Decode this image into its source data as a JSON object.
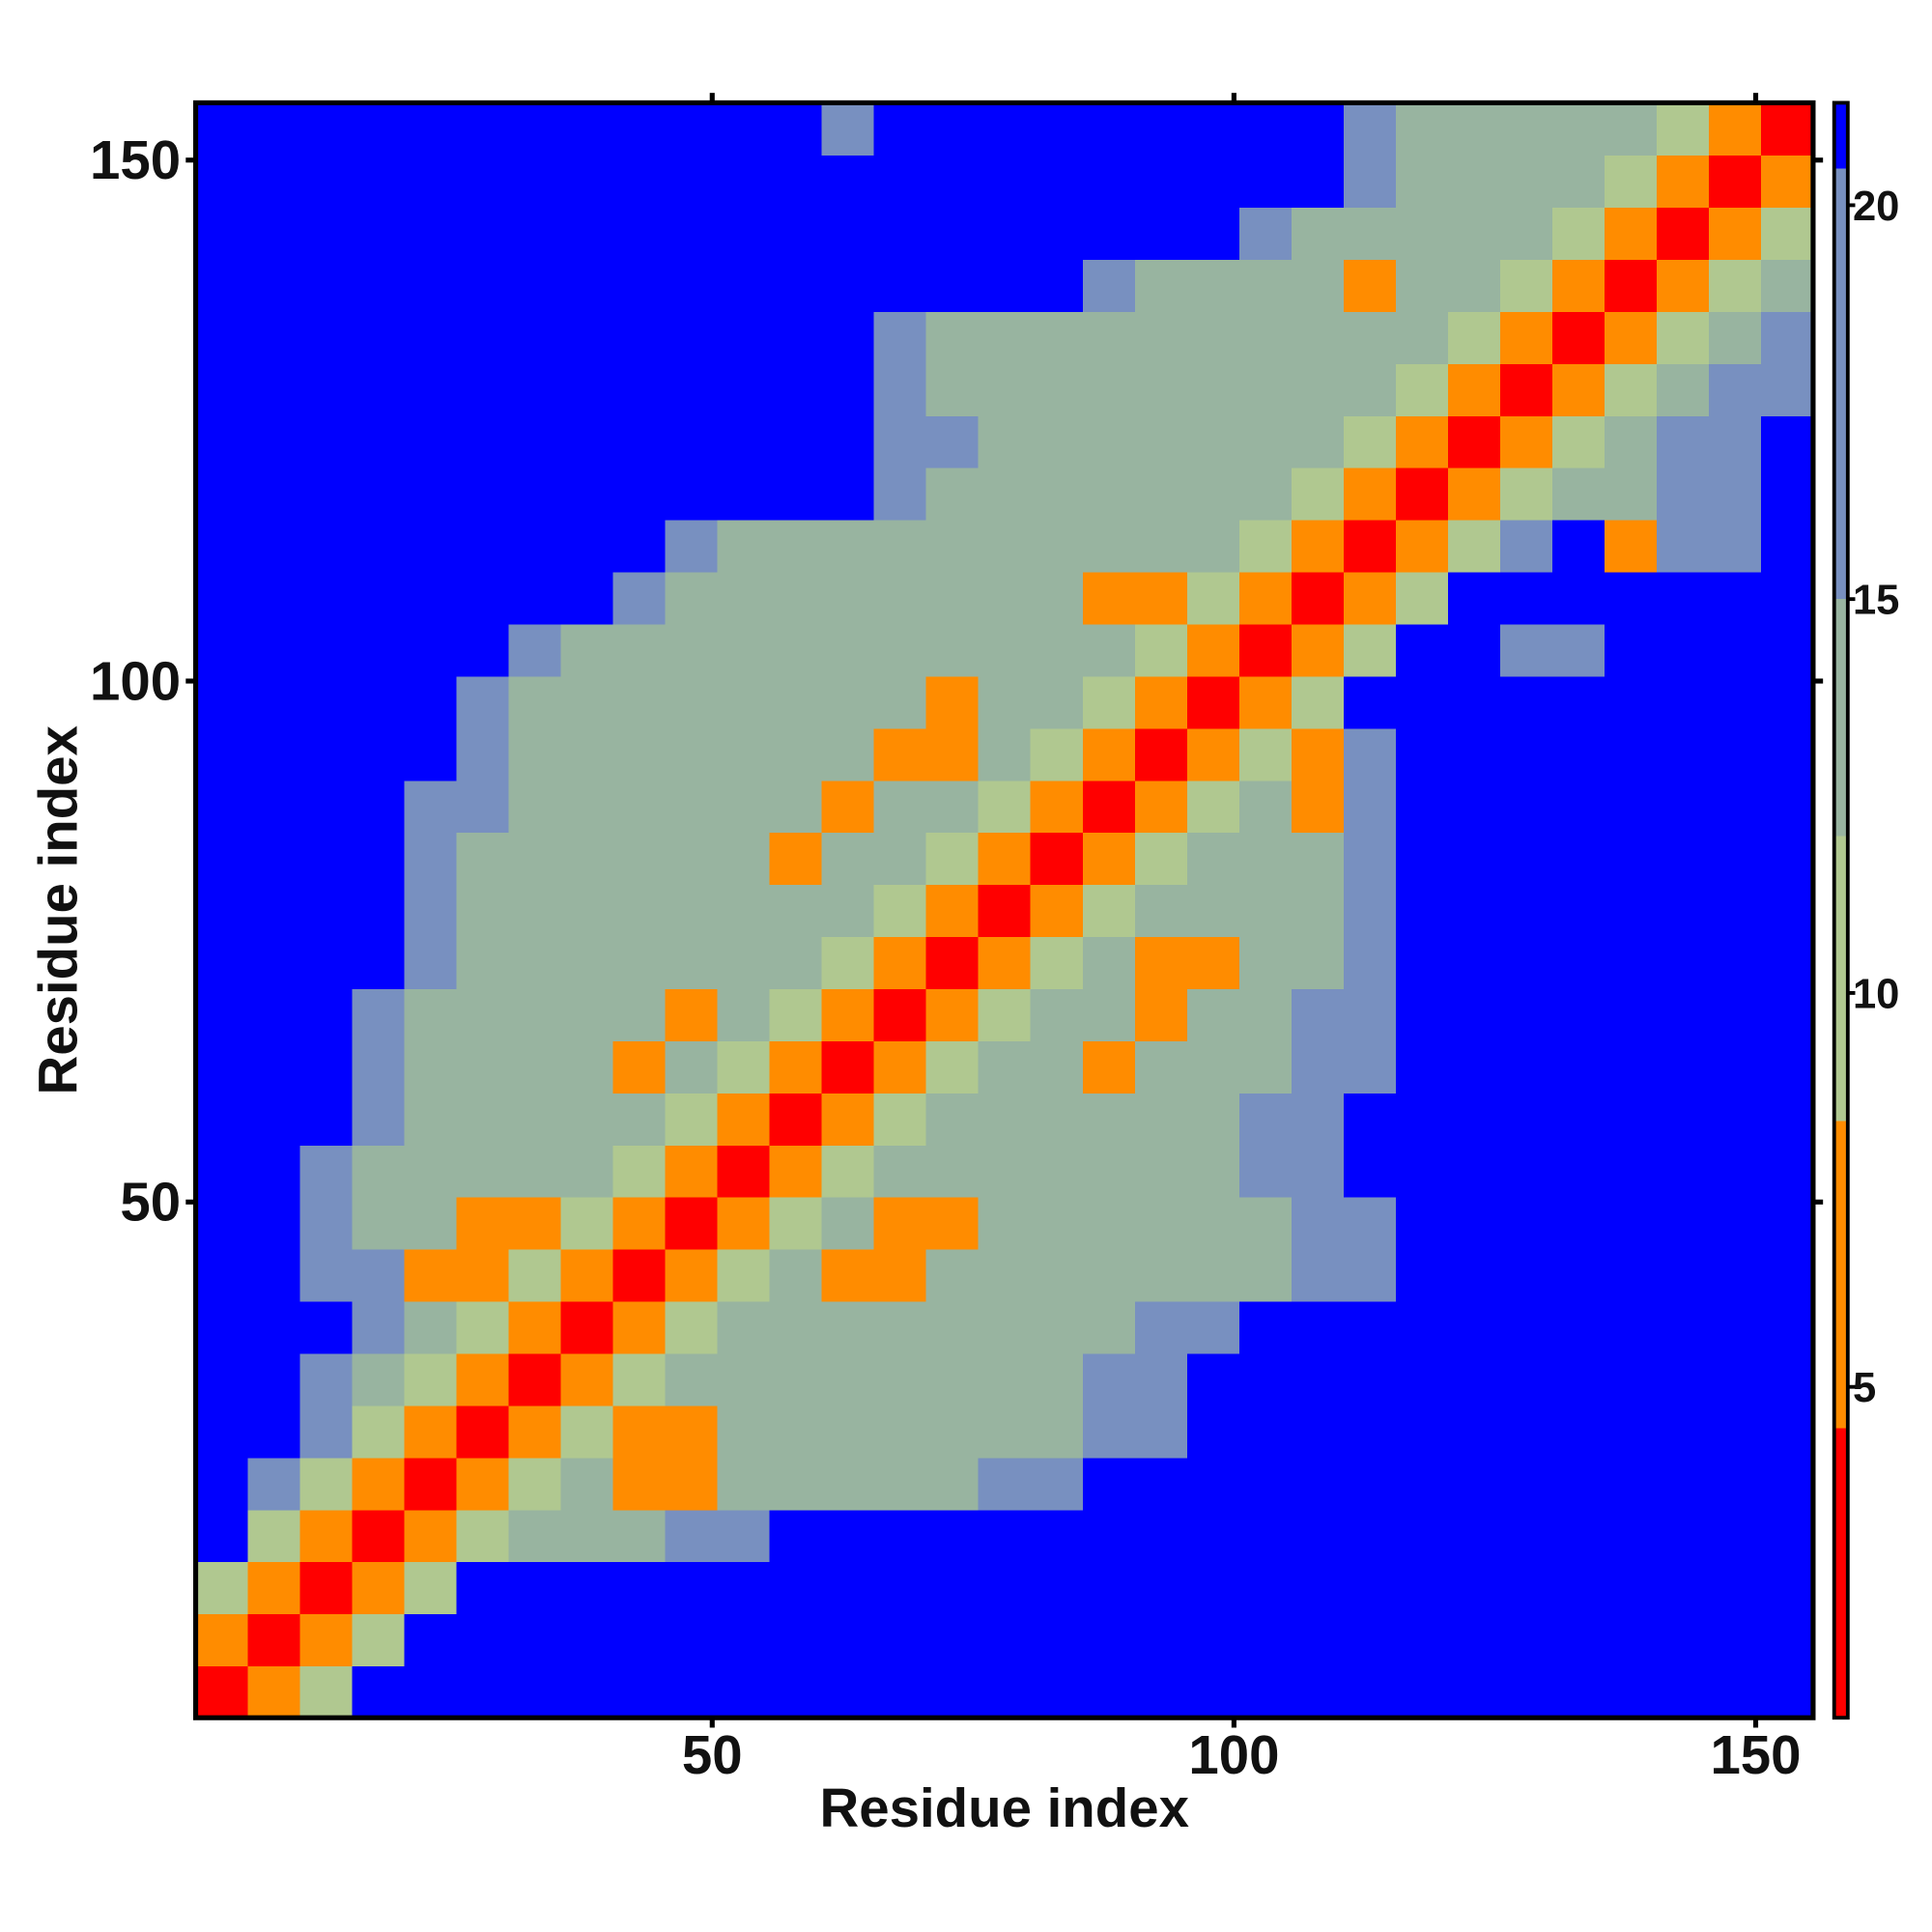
{
  "chart_data": {
    "type": "heatmap",
    "x_label": "Residue index",
    "y_label": "Residue index",
    "x": [
      3,
      8,
      13,
      18,
      23,
      28,
      33,
      38,
      43,
      48,
      53,
      58,
      63,
      68,
      73,
      78,
      83,
      88,
      93,
      98,
      103,
      108,
      113,
      118,
      123,
      128,
      133,
      138,
      143,
      148,
      153
    ],
    "y": [
      3,
      8,
      13,
      18,
      23,
      28,
      33,
      38,
      43,
      48,
      53,
      58,
      63,
      68,
      73,
      78,
      83,
      88,
      93,
      98,
      103,
      108,
      113,
      118,
      123,
      128,
      133,
      138,
      143,
      148,
      153
    ],
    "z": [
      [
        2,
        7,
        11,
        21,
        21,
        21,
        21,
        21,
        21,
        21,
        21,
        21,
        21,
        21,
        21,
        21,
        21,
        21,
        21,
        21,
        21,
        21,
        21,
        21,
        21,
        21,
        21,
        21,
        21,
        21,
        21
      ],
      [
        7,
        2,
        7,
        11,
        21,
        21,
        21,
        21,
        21,
        21,
        21,
        21,
        21,
        21,
        21,
        21,
        21,
        21,
        21,
        21,
        21,
        21,
        21,
        21,
        21,
        21,
        21,
        21,
        21,
        21,
        21
      ],
      [
        11,
        7,
        2,
        7,
        11,
        21,
        21,
        21,
        21,
        21,
        21,
        21,
        21,
        21,
        21,
        21,
        21,
        21,
        21,
        21,
        21,
        21,
        21,
        21,
        21,
        21,
        21,
        21,
        21,
        21,
        21
      ],
      [
        21,
        11,
        7,
        2,
        7,
        11,
        13,
        13,
        13,
        17,
        17,
        21,
        21,
        21,
        21,
        21,
        21,
        21,
        21,
        21,
        21,
        21,
        21,
        21,
        21,
        21,
        21,
        21,
        21,
        21,
        21
      ],
      [
        21,
        17,
        11,
        7,
        2,
        7,
        11,
        13,
        6,
        6,
        13,
        13,
        14,
        14,
        13,
        17,
        17,
        21,
        21,
        21,
        21,
        21,
        21,
        21,
        21,
        21,
        21,
        21,
        21,
        21,
        21
      ],
      [
        21,
        21,
        17,
        11,
        7,
        2,
        7,
        11,
        6,
        6,
        13,
        14,
        13,
        13,
        14,
        13,
        14,
        17,
        17,
        21,
        21,
        21,
        21,
        21,
        21,
        21,
        21,
        21,
        21,
        21,
        21
      ],
      [
        21,
        21,
        17,
        13,
        11,
        7,
        2,
        7,
        11,
        13,
        14,
        13,
        13,
        14,
        13,
        13,
        14,
        17,
        17,
        21,
        21,
        21,
        21,
        21,
        21,
        21,
        21,
        21,
        21,
        21,
        21
      ],
      [
        21,
        21,
        21,
        17,
        13,
        11,
        7,
        2,
        7,
        11,
        13,
        14,
        13,
        13,
        14,
        13,
        14,
        14,
        17,
        17,
        21,
        21,
        21,
        21,
        21,
        21,
        21,
        21,
        21,
        21,
        21
      ],
      [
        21,
        21,
        17,
        17,
        6,
        6,
        11,
        7,
        2,
        7,
        11,
        13,
        6,
        6,
        13,
        14,
        13,
        13,
        14,
        14,
        13,
        17,
        17,
        21,
        21,
        21,
        21,
        21,
        21,
        21,
        21
      ],
      [
        21,
        21,
        17,
        14,
        13,
        6,
        6,
        11,
        7,
        2,
        7,
        11,
        13,
        6,
        6,
        13,
        14,
        13,
        13,
        14,
        14,
        17,
        17,
        21,
        21,
        21,
        21,
        21,
        21,
        21,
        21
      ],
      [
        21,
        21,
        17,
        14,
        13,
        13,
        14,
        13,
        11,
        7,
        2,
        7,
        11,
        13,
        14,
        13,
        13,
        14,
        13,
        14,
        17,
        17,
        21,
        21,
        21,
        21,
        21,
        21,
        21,
        21,
        21
      ],
      [
        21,
        21,
        21,
        17,
        14,
        13,
        13,
        14,
        13,
        11,
        7,
        2,
        7,
        11,
        13,
        14,
        13,
        13,
        14,
        13,
        17,
        17,
        21,
        21,
        21,
        21,
        21,
        21,
        21,
        21,
        21
      ],
      [
        21,
        21,
        21,
        17,
        14,
        13,
        13,
        14,
        6,
        13,
        11,
        7,
        2,
        7,
        11,
        13,
        13,
        6,
        13,
        14,
        14,
        17,
        17,
        21,
        21,
        21,
        21,
        21,
        21,
        21,
        21
      ],
      [
        21,
        21,
        21,
        17,
        13,
        14,
        13,
        13,
        13,
        6,
        13,
        11,
        7,
        2,
        7,
        11,
        13,
        13,
        6,
        13,
        14,
        17,
        17,
        21,
        21,
        21,
        21,
        21,
        21,
        21,
        21
      ],
      [
        21,
        21,
        21,
        21,
        17,
        14,
        13,
        13,
        14,
        13,
        13,
        14,
        11,
        7,
        2,
        7,
        11,
        13,
        6,
        6,
        13,
        14,
        17,
        21,
        21,
        21,
        21,
        21,
        21,
        21,
        21
      ],
      [
        21,
        21,
        21,
        21,
        17,
        14,
        13,
        14,
        13,
        13,
        14,
        13,
        13,
        11,
        7,
        2,
        7,
        11,
        13,
        13,
        14,
        14,
        17,
        21,
        21,
        21,
        21,
        21,
        21,
        21,
        21
      ],
      [
        21,
        21,
        21,
        21,
        17,
        14,
        13,
        13,
        14,
        13,
        13,
        6,
        13,
        13,
        11,
        7,
        2,
        7,
        11,
        13,
        13,
        14,
        17,
        21,
        21,
        21,
        21,
        21,
        21,
        21,
        21
      ],
      [
        21,
        21,
        21,
        21,
        17,
        17,
        13,
        14,
        13,
        13,
        14,
        13,
        6,
        13,
        13,
        11,
        7,
        2,
        7,
        11,
        13,
        6,
        17,
        21,
        21,
        21,
        21,
        21,
        21,
        21,
        21
      ],
      [
        21,
        21,
        21,
        21,
        21,
        17,
        14,
        13,
        13,
        14,
        13,
        13,
        13,
        6,
        6,
        13,
        11,
        7,
        2,
        7,
        11,
        6,
        17,
        21,
        21,
        21,
        21,
        21,
        21,
        21,
        21
      ],
      [
        21,
        21,
        21,
        21,
        21,
        17,
        14,
        13,
        14,
        13,
        13,
        14,
        13,
        13,
        6,
        13,
        13,
        11,
        7,
        2,
        7,
        11,
        21,
        21,
        21,
        21,
        21,
        21,
        21,
        21,
        21
      ],
      [
        21,
        21,
        21,
        21,
        21,
        21,
        17,
        14,
        13,
        13,
        14,
        13,
        13,
        14,
        13,
        13,
        13,
        13,
        11,
        7,
        2,
        7,
        11,
        21,
        21,
        17,
        17,
        21,
        21,
        21,
        21
      ],
      [
        21,
        21,
        21,
        21,
        21,
        21,
        21,
        21,
        17,
        14,
        13,
        13,
        14,
        13,
        13,
        14,
        13,
        6,
        6,
        11,
        7,
        2,
        7,
        11,
        21,
        21,
        21,
        21,
        21,
        21,
        21
      ],
      [
        21,
        21,
        21,
        21,
        21,
        21,
        21,
        21,
        21,
        17,
        14,
        13,
        14,
        13,
        13,
        14,
        13,
        13,
        13,
        14,
        11,
        7,
        2,
        7,
        11,
        17,
        21,
        6,
        17,
        17,
        21
      ],
      [
        21,
        21,
        21,
        21,
        21,
        21,
        21,
        21,
        21,
        21,
        21,
        21,
        21,
        17,
        14,
        13,
        14,
        13,
        14,
        13,
        13,
        11,
        7,
        2,
        7,
        11,
        14,
        14,
        17,
        17,
        21
      ],
      [
        21,
        21,
        21,
        21,
        21,
        21,
        21,
        21,
        21,
        21,
        21,
        21,
        21,
        17,
        17,
        14,
        13,
        14,
        13,
        14,
        13,
        13,
        11,
        7,
        2,
        7,
        11,
        14,
        17,
        17,
        21
      ],
      [
        21,
        21,
        21,
        21,
        21,
        21,
        21,
        21,
        21,
        21,
        21,
        21,
        21,
        17,
        14,
        13,
        14,
        14,
        13,
        14,
        14,
        13,
        13,
        11,
        7,
        2,
        7,
        11,
        14,
        17,
        17
      ],
      [
        21,
        21,
        21,
        21,
        21,
        21,
        21,
        21,
        21,
        21,
        21,
        21,
        21,
        17,
        14,
        14,
        13,
        14,
        14,
        13,
        14,
        13,
        14,
        13,
        11,
        7,
        2,
        7,
        11,
        14,
        17
      ],
      [
        21,
        21,
        21,
        21,
        21,
        21,
        21,
        21,
        21,
        21,
        21,
        21,
        21,
        21,
        21,
        21,
        21,
        17,
        14,
        13,
        14,
        13,
        6,
        13,
        14,
        11,
        7,
        2,
        7,
        11,
        14
      ],
      [
        21,
        21,
        21,
        21,
        21,
        21,
        21,
        21,
        21,
        21,
        21,
        21,
        21,
        21,
        21,
        21,
        21,
        21,
        21,
        21,
        17,
        14,
        13,
        14,
        13,
        14,
        11,
        7,
        2,
        7,
        11
      ],
      [
        21,
        21,
        21,
        21,
        21,
        21,
        21,
        21,
        21,
        21,
        21,
        21,
        21,
        21,
        21,
        21,
        21,
        21,
        21,
        21,
        21,
        21,
        17,
        14,
        13,
        14,
        13,
        11,
        7,
        2,
        7
      ],
      [
        21,
        21,
        21,
        21,
        21,
        21,
        21,
        21,
        21,
        21,
        21,
        21,
        17,
        21,
        21,
        21,
        21,
        21,
        21,
        21,
        21,
        21,
        17,
        14,
        13,
        14,
        13,
        14,
        11,
        7,
        2
      ]
    ],
    "xlim": [
      0.5,
      155.5
    ],
    "ylim": [
      0.5,
      155.5
    ],
    "xticks": [
      50,
      100,
      150
    ],
    "yticks": [
      50,
      100,
      150
    ],
    "clim": [
      0.8,
      21.3
    ],
    "cticks": [
      5,
      10,
      15,
      20
    ],
    "colorscale": [
      [
        0.8,
        "#ff0000"
      ],
      [
        4.5,
        "#ff8c00"
      ],
      [
        8.4,
        "#b0c890"
      ],
      [
        12,
        "#98b4a0"
      ],
      [
        15,
        "#7890c0"
      ],
      [
        20.5,
        "#0000ff"
      ]
    ]
  }
}
